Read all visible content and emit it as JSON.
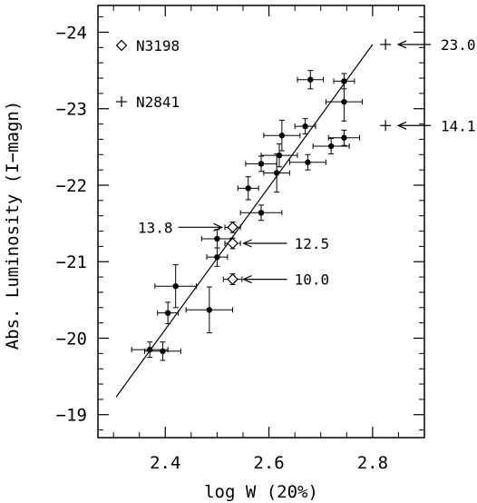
{
  "chart_data": {
    "type": "scatter",
    "title": "",
    "xlabel": "log W (20%)",
    "ylabel": "Abs. Luminosity (I−magn)",
    "xlim": [
      2.27,
      2.9
    ],
    "ylim": [
      -18.7,
      -24.35
    ],
    "x_ticks": [
      2.4,
      2.6,
      2.8
    ],
    "x_tick_labels": [
      "2.4",
      "2.6",
      "2.8"
    ],
    "y_ticks": [
      -19,
      -20,
      -21,
      -22,
      -23,
      -24
    ],
    "y_tick_labels": [
      "−19",
      "−20",
      "−21",
      "−22",
      "−23",
      "−24"
    ],
    "grid": false,
    "legend": [
      {
        "marker": "diamond",
        "label": "N3198"
      },
      {
        "marker": "plus",
        "label": "N2841"
      }
    ],
    "fit_line": {
      "x1": 2.305,
      "y1": -19.23,
      "x2": 2.8,
      "y2": -23.84
    },
    "series": [
      {
        "marker": "filled-circle",
        "points": [
          {
            "x": 2.68,
            "y": -23.38,
            "xerr": 0.025,
            "yerr": 0.12
          },
          {
            "x": 2.745,
            "y": -23.36,
            "xerr": 0.02,
            "yerr": 0.1
          },
          {
            "x": 2.745,
            "y": -23.09,
            "xerr": 0.035,
            "yerr": 0.25
          },
          {
            "x": 2.67,
            "y": -22.77,
            "xerr": 0.02,
            "yerr": 0.1
          },
          {
            "x": 2.745,
            "y": -22.62,
            "xerr": 0.03,
            "yerr": 0.1
          },
          {
            "x": 2.625,
            "y": -22.65,
            "xerr": 0.035,
            "yerr": 0.2
          },
          {
            "x": 2.72,
            "y": -22.51,
            "xerr": 0.035,
            "yerr": 0.1
          },
          {
            "x": 2.62,
            "y": -22.39,
            "xerr": 0.035,
            "yerr": 0.15
          },
          {
            "x": 2.585,
            "y": -22.28,
            "xerr": 0.03,
            "yerr": 0.1
          },
          {
            "x": 2.675,
            "y": -22.3,
            "xerr": 0.035,
            "yerr": 0.1
          },
          {
            "x": 2.615,
            "y": -22.16,
            "xerr": 0.025,
            "yerr": 0.25
          },
          {
            "x": 2.56,
            "y": -21.96,
            "xerr": 0.02,
            "yerr": 0.15
          },
          {
            "x": 2.585,
            "y": -21.64,
            "xerr": 0.04,
            "yerr": 0.1
          },
          {
            "x": 2.5,
            "y": -21.3,
            "xerr": 0.03,
            "yerr": 0.12
          },
          {
            "x": 2.5,
            "y": -21.06,
            "xerr": 0.02,
            "yerr": 0.12
          },
          {
            "x": 2.42,
            "y": -20.68,
            "xerr": 0.04,
            "yerr": 0.28
          },
          {
            "x": 2.405,
            "y": -20.33,
            "xerr": 0.02,
            "yerr": 0.14
          },
          {
            "x": 2.485,
            "y": -20.37,
            "xerr": 0.045,
            "yerr": 0.3
          },
          {
            "x": 2.37,
            "y": -19.85,
            "xerr": 0.035,
            "yerr": 0.1
          },
          {
            "x": 2.395,
            "y": -19.83,
            "xerr": 0.035,
            "yerr": 0.12
          }
        ]
      },
      {
        "marker": "diamond",
        "points": [
          {
            "x": 2.53,
            "y": -21.45,
            "xerr": 0.015,
            "yerr": 0.07,
            "annotation": "13.8",
            "ann_side": "left"
          },
          {
            "x": 2.53,
            "y": -21.24,
            "xerr": 0.015,
            "yerr": 0.07,
            "annotation": "12.5",
            "ann_side": "right"
          },
          {
            "x": 2.53,
            "y": -20.77,
            "xerr": 0.018,
            "yerr": 0.07,
            "annotation": "10.0",
            "ann_side": "right"
          }
        ]
      },
      {
        "marker": "plus",
        "points": [
          {
            "x": 2.825,
            "y": -23.84,
            "annotation": "23.0",
            "ann_side": "right"
          },
          {
            "x": 2.825,
            "y": -22.78,
            "annotation": "14.1",
            "ann_side": "right"
          }
        ]
      }
    ]
  }
}
